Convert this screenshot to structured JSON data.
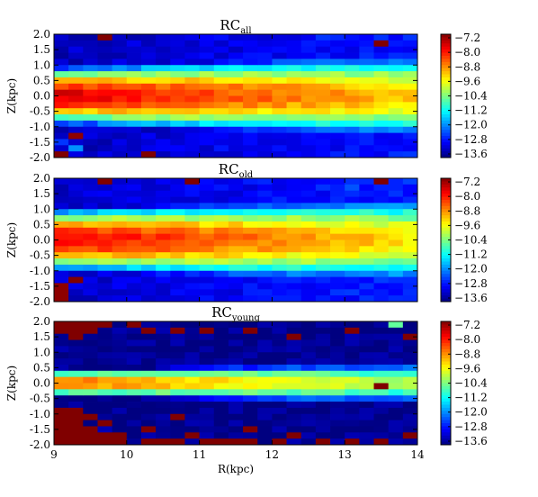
{
  "chart_data": [
    {
      "type": "heatmap",
      "title": "RC",
      "title_sub": "all",
      "xlabel": "",
      "ylabel": "Z(kpc)",
      "xlim": [
        9,
        14
      ],
      "ylim": [
        -2.0,
        2.0
      ],
      "yticks": [
        "2.0",
        "1.5",
        "1.0",
        "0.5",
        "0.0",
        "-0.5",
        "-1.0",
        "-1.5",
        "-2.0"
      ],
      "xticks": [],
      "variant": "all",
      "colorbar": {
        "vmin": -13.8,
        "vmax": -7.0,
        "ticks": [
          "-7.2",
          "-8.0",
          "-8.8",
          "-9.6",
          "-10.4",
          "-11.2",
          "-12.0",
          "-12.8",
          "-13.6"
        ]
      }
    },
    {
      "type": "heatmap",
      "title": "RC",
      "title_sub": "old",
      "xlabel": "",
      "ylabel": "Z(kpc)",
      "xlim": [
        9,
        14
      ],
      "ylim": [
        -2.0,
        2.0
      ],
      "yticks": [
        "2.0",
        "1.5",
        "1.0",
        "0.5",
        "0.0",
        "-0.5",
        "-1.0",
        "-1.5",
        "-2.0"
      ],
      "xticks": [],
      "variant": "old",
      "colorbar": {
        "vmin": -13.8,
        "vmax": -7.0,
        "ticks": [
          "-7.2",
          "-8.0",
          "-8.8",
          "-9.6",
          "-10.4",
          "-11.2",
          "-12.0",
          "-12.8",
          "-13.6"
        ]
      }
    },
    {
      "type": "heatmap",
      "title": "RC",
      "title_sub": "young",
      "xlabel": "R(kpc)",
      "ylabel": "Z(kpc)",
      "xlim": [
        9,
        14
      ],
      "ylim": [
        -2.0,
        2.0
      ],
      "yticks": [
        "2.0",
        "1.5",
        "1.0",
        "0.5",
        "0.0",
        "-0.5",
        "-1.0",
        "-1.5",
        "-2.0"
      ],
      "xticks": [
        "9",
        "10",
        "11",
        "12",
        "13",
        "14"
      ],
      "variant": "young",
      "colorbar": {
        "vmin": -13.8,
        "vmax": -7.0,
        "ticks": [
          "-7.2",
          "-8.0",
          "-8.8",
          "-9.6",
          "-10.4",
          "-11.2",
          "-12.0",
          "-12.8",
          "-13.6"
        ]
      }
    }
  ],
  "grid": false,
  "colormap": "jet"
}
